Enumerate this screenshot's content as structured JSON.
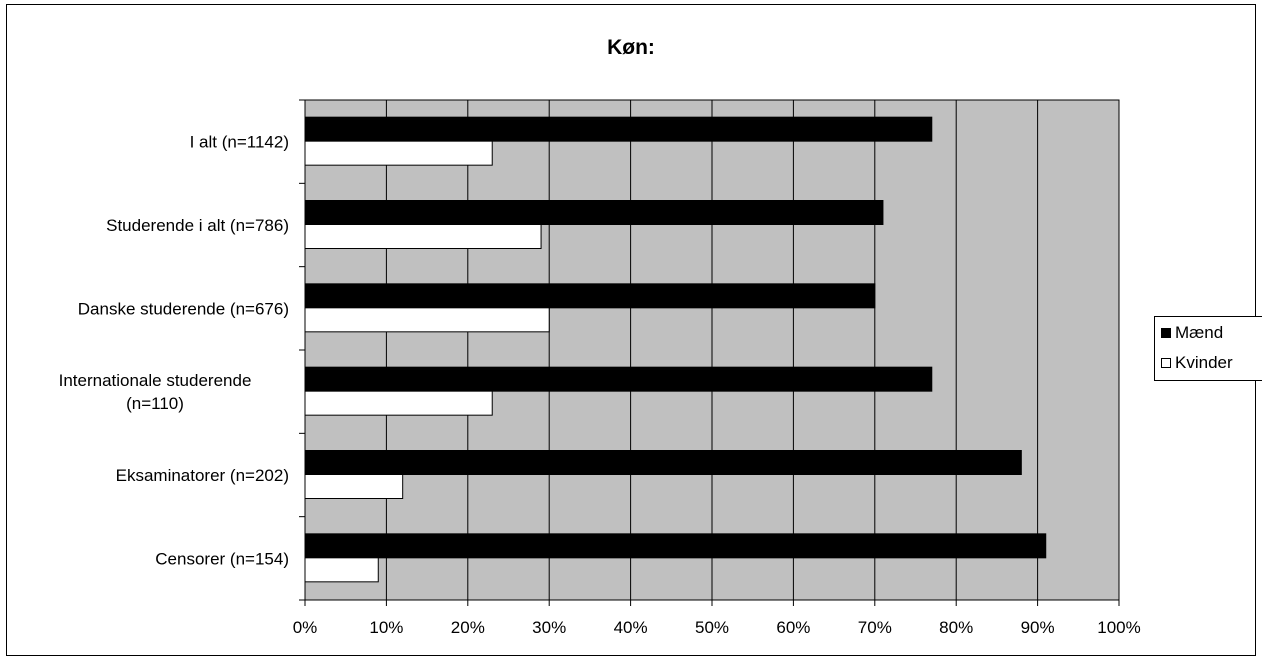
{
  "chart_data": {
    "type": "bar",
    "orientation": "horizontal",
    "title": "Køn:",
    "categories": [
      "I alt (n=1142)",
      "Studerende i alt (n=786)",
      "Danske studerende (n=676)",
      [
        "Internationale studerende",
        "(n=110)"
      ],
      "Eksaminatorer (n=202)",
      "Censorer (n=154)"
    ],
    "series": [
      {
        "name": "Mænd",
        "values": [
          77,
          71,
          70,
          77,
          88,
          91
        ],
        "color": "#000000"
      },
      {
        "name": "Kvinder",
        "values": [
          23,
          29,
          30,
          23,
          12,
          9
        ],
        "color": "#ffffff"
      }
    ],
    "xlim": [
      0,
      100
    ],
    "xticks": [
      "0%",
      "10%",
      "20%",
      "30%",
      "40%",
      "50%",
      "60%",
      "70%",
      "80%",
      "90%",
      "100%"
    ],
    "plot_background": "#c0c0c0",
    "grid": true,
    "legend_position": "right"
  }
}
